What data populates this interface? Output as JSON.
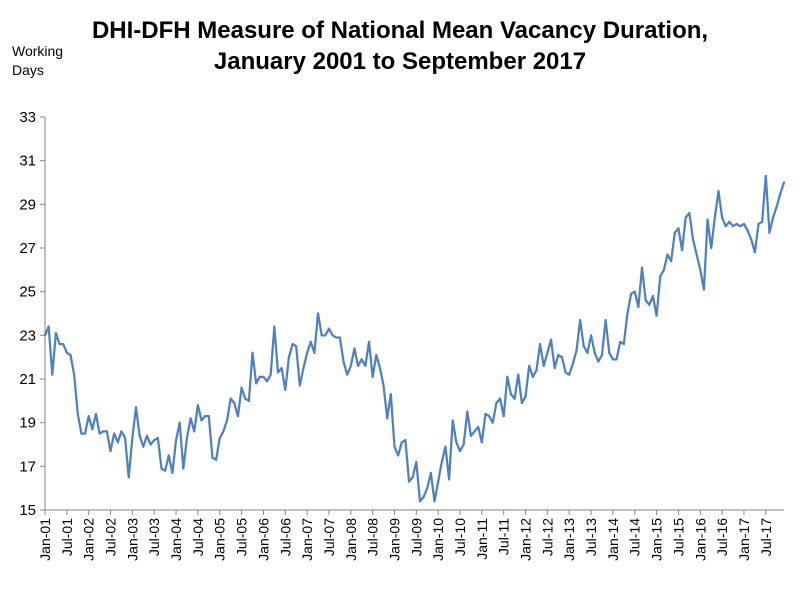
{
  "chart_data": {
    "type": "line",
    "title_lines": [
      "DHI-DFH Measure of National Mean Vacancy Duration,",
      "January 2001 to September 2017"
    ],
    "ylabel_lines": [
      "Working",
      "Days"
    ],
    "xlabel": "",
    "ylim": [
      15,
      33
    ],
    "yticks": [
      15,
      17,
      19,
      21,
      23,
      25,
      27,
      29,
      31,
      33
    ],
    "grid": false,
    "legend": "none",
    "line_color": "#4f81bd",
    "x_tick_labels": [
      "Jan-01",
      "Jul-01",
      "Jan-02",
      "Jul-02",
      "Jan-03",
      "Jul-03",
      "Jan-04",
      "Jul-04",
      "Jan-05",
      "Jul-05",
      "Jan-06",
      "Jul-06",
      "Jan-07",
      "Jul-07",
      "Jan-08",
      "Jul-08",
      "Jan-09",
      "Jul-09",
      "Jan-10",
      "Jul-10",
      "Jan-11",
      "Jul-11",
      "Jan-12",
      "Jul-12",
      "Jan-13",
      "Jul-13",
      "Jan-14",
      "Jul-14",
      "Jan-15",
      "Jul-15",
      "Jan-16",
      "Jul-16",
      "Jan-17",
      "Jul-17"
    ],
    "x_start": "Jan-01",
    "x_end": "Sep-17",
    "series": [
      {
        "values": [
          23.0,
          23.4,
          21.2,
          23.1,
          22.6,
          22.6,
          22.2,
          22.1,
          21.2,
          19.4,
          18.5,
          18.5,
          19.3,
          18.7,
          19.4,
          18.5,
          18.6,
          18.6,
          17.7,
          18.5,
          18.1,
          18.6,
          18.3,
          16.5,
          18.3,
          19.7,
          18.4,
          17.9,
          18.4,
          18.0,
          18.2,
          18.3,
          16.9,
          16.8,
          17.5,
          16.7,
          18.2,
          19.0,
          16.9,
          18.3,
          19.2,
          18.6,
          19.8,
          19.1,
          19.3,
          19.3,
          17.4,
          17.3,
          18.3,
          18.6,
          19.1,
          20.1,
          19.9,
          19.3,
          20.6,
          20.1,
          20.0,
          22.2,
          20.8,
          21.1,
          21.1,
          20.9,
          21.2,
          23.4,
          21.3,
          21.5,
          20.5,
          22.0,
          22.6,
          22.5,
          20.7,
          21.5,
          22.2,
          22.7,
          22.2,
          24.0,
          23.0,
          23.0,
          23.3,
          23.0,
          22.9,
          22.9,
          21.8,
          21.2,
          21.6,
          22.4,
          21.6,
          21.9,
          21.6,
          22.7,
          21.1,
          22.1,
          21.5,
          20.7,
          19.2,
          20.3,
          17.9,
          17.5,
          18.1,
          18.2,
          16.3,
          16.5,
          17.2,
          15.4,
          15.6,
          16.0,
          16.7,
          15.4,
          16.3,
          17.2,
          17.9,
          16.4,
          19.1,
          18.1,
          17.7,
          18.0,
          19.5,
          18.4,
          18.6,
          18.8,
          18.1,
          19.4,
          19.3,
          19.0,
          19.9,
          20.1,
          19.3,
          21.1,
          20.3,
          20.1,
          21.2,
          19.9,
          20.2,
          21.6,
          21.1,
          21.4,
          22.6,
          21.6,
          22.2,
          22.8,
          21.5,
          22.1,
          22.0,
          21.3,
          21.2,
          21.7,
          22.3,
          23.7,
          22.5,
          22.2,
          23.0,
          22.2,
          21.8,
          22.1,
          23.7,
          22.2,
          21.9,
          21.9,
          22.7,
          22.6,
          24.0,
          24.9,
          25.0,
          24.3,
          26.1,
          24.6,
          24.4,
          24.8,
          23.9,
          25.7,
          26.0,
          26.7,
          26.4,
          27.7,
          27.9,
          26.9,
          28.4,
          28.6,
          27.4,
          26.7,
          26.0,
          25.1,
          28.3,
          27.0,
          28.4,
          29.6,
          28.4,
          28.0,
          28.2,
          28.0,
          28.1,
          28.0,
          28.1,
          27.8,
          27.4,
          26.8,
          28.1,
          28.2,
          30.3,
          27.7,
          28.4,
          28.9,
          29.5,
          30.0
        ]
      }
    ]
  }
}
